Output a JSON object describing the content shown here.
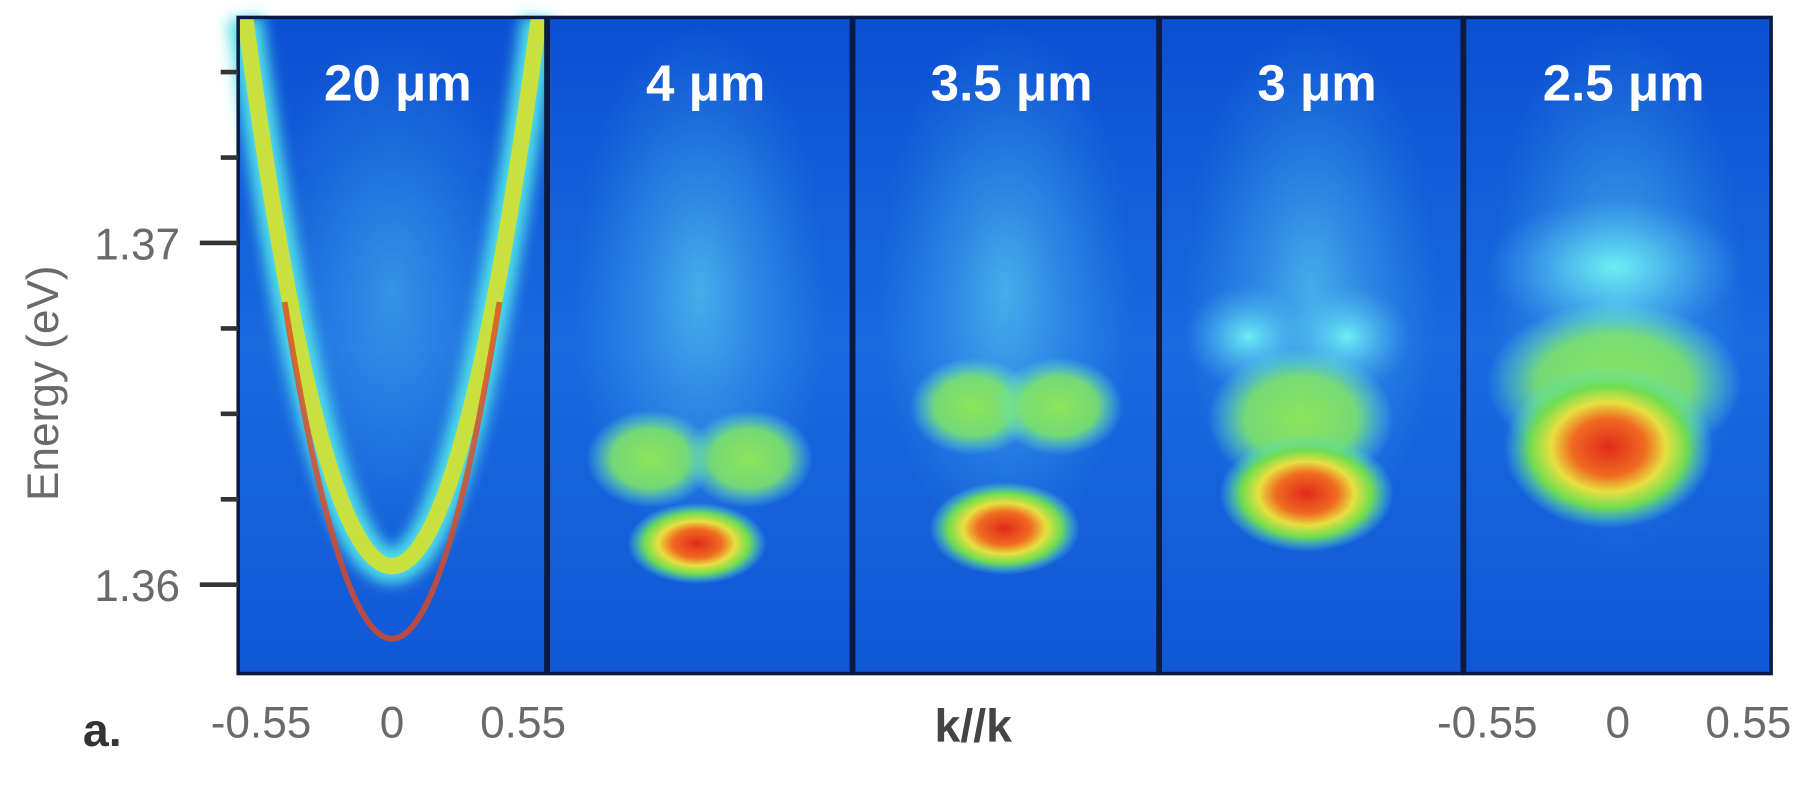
{
  "figure": {
    "label": "a.",
    "ylabel": "Energy (eV)",
    "xlabel": "k//k",
    "ylim": [
      1.3574,
      1.3766
    ],
    "yticks": [
      1.36,
      1.37
    ],
    "yminorticks": [
      1.3625,
      1.365,
      1.3675,
      1.3725,
      1.375
    ],
    "xlim": [
      -0.62,
      0.62
    ],
    "xticks": [
      -0.55,
      0,
      0.55
    ],
    "panels": [
      {
        "title": "20 μm"
      },
      {
        "title": "4 μm"
      },
      {
        "title": "3.5 μm"
      },
      {
        "title": "3 μm"
      },
      {
        "title": "2.5 μm"
      }
    ]
  }
}
